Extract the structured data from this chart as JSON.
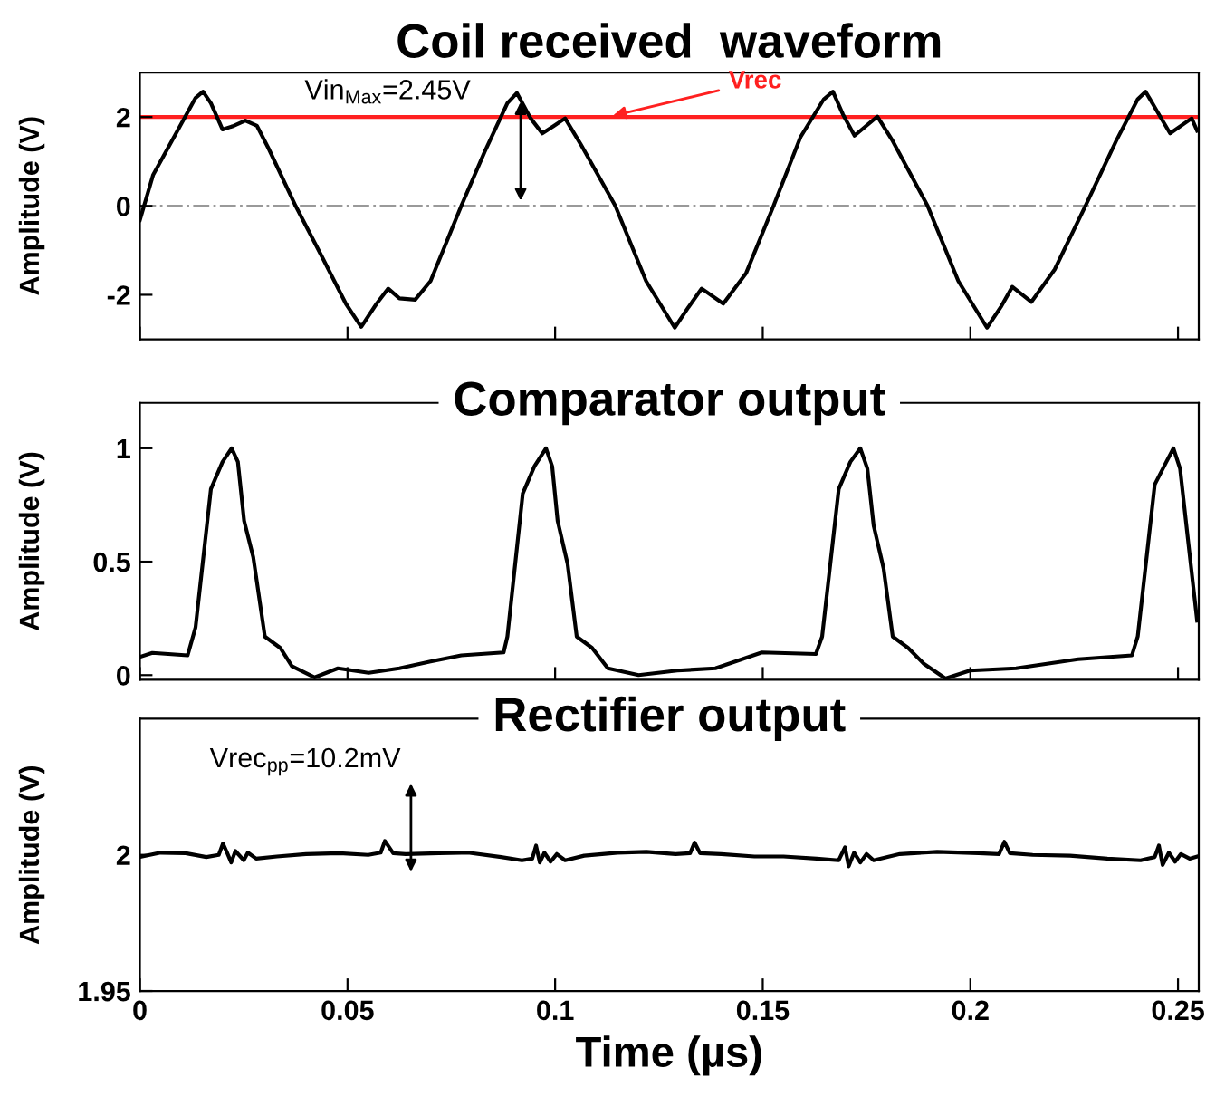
{
  "chart_data": [
    {
      "type": "line",
      "title": "Coil received  waveform",
      "ylabel": "Amplitude (V)",
      "xlim": [
        0,
        0.255
      ],
      "xticks": [
        0,
        0.05,
        0.1,
        0.15,
        0.2,
        0.25
      ],
      "ylim": [
        -3,
        3
      ],
      "yticks": [
        -2,
        0,
        2
      ],
      "tick_labels": "y",
      "series": [
        {
          "color": "#000000",
          "x": [
            0,
            0.0032,
            0.0087,
            0.0134,
            0.0152,
            0.0171,
            0.0199,
            0.0226,
            0.0254,
            0.0282,
            0.031,
            0.0375,
            0.044,
            0.0496,
            0.0533,
            0.057,
            0.0598,
            0.0625,
            0.0663,
            0.07,
            0.0774,
            0.083,
            0.0885,
            0.0908,
            0.0941,
            0.0969,
            0.0997,
            0.1024,
            0.1062,
            0.1145,
            0.1219,
            0.1288,
            0.1321,
            0.1353,
            0.1405,
            0.146,
            0.1526,
            0.1591,
            0.1647,
            0.1669,
            0.1693,
            0.1721,
            0.1776,
            0.1813,
            0.1897,
            0.1971,
            0.204,
            0.2073,
            0.2101,
            0.2147,
            0.2203,
            0.2277,
            0.2351,
            0.2403,
            0.2422,
            0.2454,
            0.2481,
            0.2533,
            0.2546
          ],
          "values": [
            -0.32,
            0.7,
            1.63,
            2.43,
            2.57,
            2.31,
            1.72,
            1.8,
            1.92,
            1.8,
            1.29,
            0,
            -1.17,
            -2.2,
            -2.72,
            -2.2,
            -1.86,
            -2.08,
            -2.11,
            -1.69,
            0,
            1.21,
            2.31,
            2.54,
            1.97,
            1.63,
            1.8,
            1.97,
            1.38,
            0,
            -1.69,
            -2.74,
            -2.28,
            -1.86,
            -2.2,
            -1.51,
            0,
            1.55,
            2.4,
            2.57,
            2.06,
            1.58,
            2.01,
            1.46,
            0,
            -1.69,
            -2.74,
            -2.28,
            -1.82,
            -2.16,
            -1.43,
            0,
            1.46,
            2.4,
            2.57,
            2.06,
            1.63,
            1.97,
            1.69
          ]
        }
      ],
      "ref_lines": [
        {
          "axis": "y",
          "value": 2,
          "color": "#ff2020"
        },
        {
          "axis": "y",
          "value": 0,
          "color": "#999999",
          "line_style": "dashdot"
        }
      ],
      "annotations": [
        {
          "text": "Vin$_{Max}$=2.45V",
          "x": 0.0917,
          "y": 2.45
        },
        {
          "text": "Vrec",
          "x": 0.1127,
          "y": 2
        }
      ]
    },
    {
      "type": "line",
      "title": "Comparator output",
      "ylabel": "Amplitude (V)",
      "xlim": [
        0,
        0.255
      ],
      "xticks": [
        0,
        0.05,
        0.1,
        0.15,
        0.2,
        0.25
      ],
      "ylim": [
        -0.02,
        1.2
      ],
      "yticks": [
        0,
        0.5,
        1
      ],
      "tick_labels": "y",
      "series": [
        {
          "color": "#000000",
          "x": [
            0,
            0.003,
            0.0115,
            0.0134,
            0.0171,
            0.0199,
            0.0221,
            0.0236,
            0.0251,
            0.0273,
            0.0301,
            0.0338,
            0.0366,
            0.0421,
            0.0477,
            0.0551,
            0.0625,
            0.07,
            0.0774,
            0.0876,
            0.0885,
            0.0922,
            0.095,
            0.0978,
            0.0993,
            0.1006,
            0.103,
            0.1052,
            0.1089,
            0.1127,
            0.1201,
            0.1294,
            0.1386,
            0.1498,
            0.1628,
            0.1643,
            0.1683,
            0.1711,
            0.1735,
            0.1752,
            0.1767,
            0.1791,
            0.1813,
            0.185,
            0.1888,
            0.194,
            0.1999,
            0.211,
            0.2259,
            0.2389,
            0.2403,
            0.2444,
            0.2472,
            0.2489,
            0.2505,
            0.2522,
            0.2546
          ],
          "values": [
            0.08,
            0.098,
            0.087,
            0.21,
            0.82,
            0.94,
            1.0,
            0.94,
            0.68,
            0.52,
            0.17,
            0.12,
            0.04,
            -0.01,
            0.03,
            0.01,
            0.03,
            0.06,
            0.087,
            0.1,
            0.17,
            0.8,
            0.92,
            1.0,
            0.92,
            0.68,
            0.49,
            0.17,
            0.12,
            0.03,
            0.0,
            0.02,
            0.03,
            0.1,
            0.093,
            0.17,
            0.82,
            0.94,
            1.0,
            0.91,
            0.66,
            0.47,
            0.17,
            0.12,
            0.05,
            -0.015,
            0.02,
            0.03,
            0.07,
            0.087,
            0.17,
            0.84,
            0.94,
            1.0,
            0.91,
            0.63,
            0.24
          ]
        }
      ]
    },
    {
      "type": "line",
      "title": "Rectifier output",
      "ylabel": "Amplitude (V)",
      "xlabel": "Time (µs)",
      "xlim": [
        0,
        0.255
      ],
      "xticks": [
        0,
        0.05,
        0.1,
        0.15,
        0.2,
        0.25
      ],
      "ylim": [
        1.95,
        2.05
      ],
      "yticks": [
        1.95,
        2
      ],
      "series": [
        {
          "color": "#000000",
          "x": [
            0,
            0.005,
            0.011,
            0.016,
            0.019,
            0.02,
            0.021,
            0.022,
            0.023,
            0.025,
            0.026,
            0.028,
            0.033,
            0.04,
            0.048,
            0.055,
            0.058,
            0.059,
            0.061,
            0.064,
            0.072,
            0.079,
            0.087,
            0.092,
            0.0945,
            0.0954,
            0.0963,
            0.0974,
            0.0989,
            0.1004,
            0.1024,
            0.107,
            0.115,
            0.122,
            0.129,
            0.1325,
            0.1336,
            0.1349,
            0.14,
            0.148,
            0.155,
            0.163,
            0.1683,
            0.1698,
            0.1707,
            0.172,
            0.1735,
            0.175,
            0.1767,
            0.183,
            0.192,
            0.202,
            0.2069,
            0.2082,
            0.2095,
            0.215,
            0.224,
            0.233,
            0.241,
            0.2444,
            0.2454,
            0.2463,
            0.2478,
            0.2493,
            0.2507,
            0.2528,
            0.2546
          ],
          "values": [
            1.9992,
            2.0008,
            2.0006,
            1.9992,
            2.0,
            2.0042,
            2.0008,
            1.9972,
            2.0014,
            1.998,
            2.0008,
            1.9986,
            1.9994,
            2.0003,
            2.0006,
            2.0,
            2.0008,
            2.0051,
            2.0006,
            2.0003,
            2.0006,
            2.0008,
            1.9992,
            1.998,
            1.9986,
            2.0034,
            1.9972,
            2.0008,
            1.9975,
            2.0003,
            1.998,
            1.9997,
            2.0008,
            2.0011,
            2.0003,
            2.0006,
            2.0045,
            2.0006,
            2.0003,
            1.9994,
            1.9994,
            1.9986,
            1.998,
            2.0028,
            1.9958,
            2.0008,
            1.9972,
            2.0003,
            1.998,
            2.0003,
            2.0011,
            2.0006,
            2.0003,
            2.0048,
            2.0006,
            2.0,
            1.9997,
            1.9986,
            1.998,
            1.9992,
            2.0034,
            1.9963,
            2.0008,
            1.9975,
            2.0003,
            1.9986,
            1.9994
          ]
        }
      ],
      "annotations": [
        "Vrec$_{pp}$=10.2mV"
      ]
    }
  ]
}
